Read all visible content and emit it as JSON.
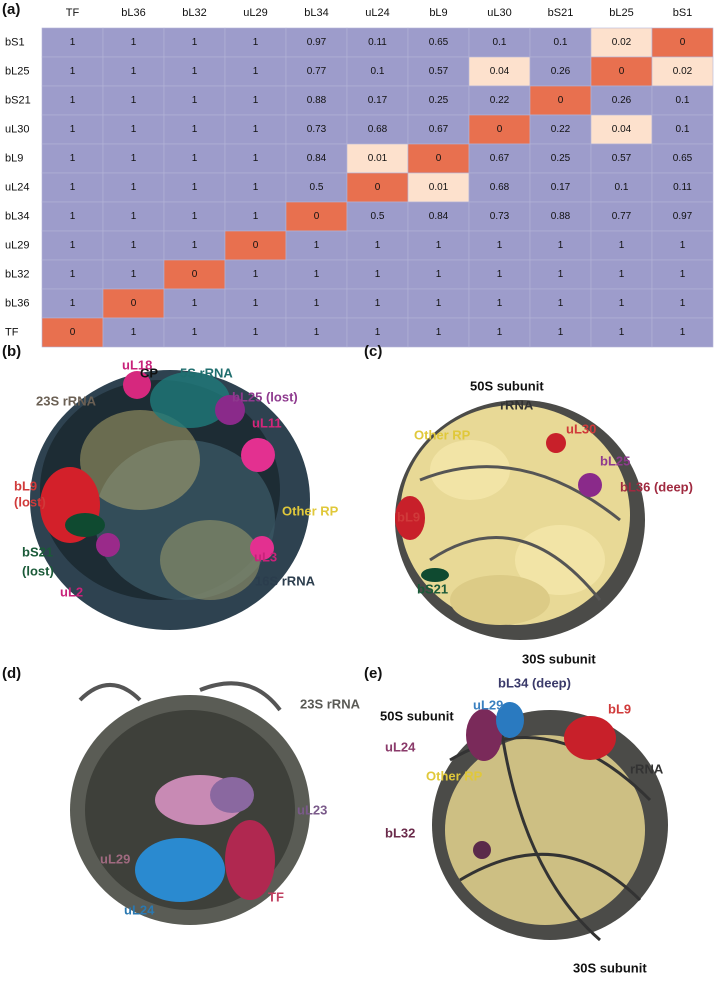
{
  "chart_data": {
    "type": "heatmap",
    "panel": "(a)",
    "columns": [
      "TF",
      "bL36",
      "bL32",
      "uL29",
      "bL34",
      "uL24",
      "bL9",
      "uL30",
      "bS21",
      "bL25",
      "bS1"
    ],
    "rows": [
      "bS1",
      "bL25",
      "bS21",
      "uL30",
      "bL9",
      "uL24",
      "bL34",
      "uL29",
      "bL32",
      "bL36",
      "TF"
    ],
    "values": [
      [
        1,
        1,
        1,
        1,
        0.97,
        0.11,
        0.65,
        0.1,
        0.1,
        0.02,
        0
      ],
      [
        1,
        1,
        1,
        1,
        0.77,
        0.1,
        0.57,
        0.04,
        0.26,
        0,
        0.02
      ],
      [
        1,
        1,
        1,
        1,
        0.88,
        0.17,
        0.25,
        0.22,
        0,
        0.26,
        0.1
      ],
      [
        1,
        1,
        1,
        1,
        0.73,
        0.68,
        0.67,
        0,
        0.22,
        0.04,
        0.1
      ],
      [
        1,
        1,
        1,
        1,
        0.84,
        0.01,
        0,
        0.67,
        0.25,
        0.57,
        0.65
      ],
      [
        1,
        1,
        1,
        1,
        0.5,
        0,
        0.01,
        0.68,
        0.17,
        0.1,
        0.11
      ],
      [
        1,
        1,
        1,
        1,
        0,
        0.5,
        0.84,
        0.73,
        0.88,
        0.77,
        0.97
      ],
      [
        1,
        1,
        1,
        0,
        1,
        1,
        1,
        1,
        1,
        1,
        1
      ],
      [
        1,
        1,
        0,
        1,
        1,
        1,
        1,
        1,
        1,
        1,
        1
      ],
      [
        1,
        0,
        1,
        1,
        1,
        1,
        1,
        1,
        1,
        1,
        1
      ],
      [
        0,
        1,
        1,
        1,
        1,
        1,
        1,
        1,
        1,
        1,
        1
      ]
    ],
    "color_bins": [
      {
        "max": 0,
        "color": "#e8704f"
      },
      {
        "max": 0.05,
        "color": "#fde1cd"
      },
      {
        "max": 1,
        "color": "#9d9ccb"
      }
    ]
  },
  "panels": {
    "b": {
      "label": "(b)",
      "texts": [
        "CP",
        "uL18",
        "5S rRNA",
        "23S rRNA",
        "bL25 (lost)",
        "uL11",
        [
          "bL9",
          "(lost)"
        ],
        "Other RP",
        [
          "bS21",
          "(lost)"
        ],
        "uL3",
        "uL2",
        "16S rRNA"
      ]
    },
    "c": {
      "label": "(c)",
      "texts": [
        "50S subunit",
        "rRNA",
        "Other RP",
        "uL30",
        "bL25",
        "bL36  (deep)",
        "bL9",
        "bS21",
        "30S subunit"
      ]
    },
    "d": {
      "label": "(d)",
      "texts": [
        "23S rRNA",
        "uL23",
        "uL29",
        "uL24",
        "TF"
      ]
    },
    "e": {
      "label": "(e)",
      "texts": [
        "bL34 (deep)",
        "uL29",
        "bL9",
        "50S subunit",
        "uL24",
        "Other RP",
        "rRNA",
        "bL32",
        "30S subunit"
      ]
    }
  }
}
